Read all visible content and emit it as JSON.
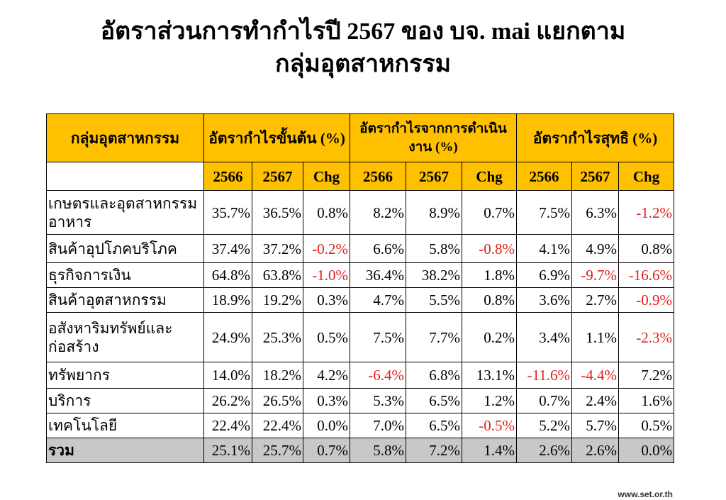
{
  "title": [
    "อัตราส่วนการทำกำไรปี 2567 ของ บจ. mai แยกตาม",
    "กลุ่มอุตสาหกรรม"
  ],
  "table": {
    "corner": "กลุ่มอุตสาหกรรม",
    "groups": [
      "อัตรากำไรขั้นต้น (%)",
      "อัตรากำไรจากการดำเนินงาน (%)",
      "อัตรากำไรสุทธิ (%)"
    ],
    "subheaders": [
      "2566",
      "2567",
      "Chg",
      "2566",
      "2567",
      "Chg",
      "2566",
      "2567",
      "Chg"
    ],
    "rows": [
      {
        "name": "เกษตรและอุตสาหกรรมอาหาร",
        "values": [
          "35.7%",
          "36.5%",
          "0.8%",
          "8.2%",
          "8.9%",
          "0.7%",
          "7.5%",
          "6.3%",
          "-1.2%"
        ]
      },
      {
        "name": "สินค้าอุปโภคบริโภค",
        "values": [
          "37.4%",
          "37.2%",
          "-0.2%",
          "6.6%",
          "5.8%",
          "-0.8%",
          "4.1%",
          "4.9%",
          "0.8%"
        ]
      },
      {
        "name": "ธุรกิจการเงิน",
        "values": [
          "64.8%",
          "63.8%",
          "-1.0%",
          "36.4%",
          "38.2%",
          "1.8%",
          "6.9%",
          "-9.7%",
          "-16.6%"
        ]
      },
      {
        "name": "สินค้าอุตสาหกรรม",
        "values": [
          "18.9%",
          "19.2%",
          "0.3%",
          "4.7%",
          "5.5%",
          "0.8%",
          "3.6%",
          "2.7%",
          "-0.9%"
        ]
      },
      {
        "name": "อสังหาริมทรัพย์และก่อสร้าง",
        "values": [
          "24.9%",
          "25.3%",
          "0.5%",
          "7.5%",
          "7.7%",
          "0.2%",
          "3.4%",
          "1.1%",
          "-2.3%"
        ]
      },
      {
        "name": "ทรัพยากร",
        "values": [
          "14.0%",
          "18.2%",
          "4.2%",
          "-6.4%",
          "6.8%",
          "13.1%",
          "-11.6%",
          "-4.4%",
          "7.2%"
        ]
      },
      {
        "name": "บริการ",
        "values": [
          "26.2%",
          "26.5%",
          "0.3%",
          "5.3%",
          "6.5%",
          "1.2%",
          "0.7%",
          "2.4%",
          "1.6%"
        ]
      },
      {
        "name": "เทคโนโลยี",
        "values": [
          "22.4%",
          "22.4%",
          "0.0%",
          "7.0%",
          "6.5%",
          "-0.5%",
          "5.2%",
          "5.7%",
          "0.5%"
        ]
      },
      {
        "name": "รวม",
        "values": [
          "25.1%",
          "25.7%",
          "0.7%",
          "5.8%",
          "7.2%",
          "1.4%",
          "2.6%",
          "2.6%",
          "0.0%"
        ]
      }
    ]
  },
  "footer": "www.set.or.th"
}
